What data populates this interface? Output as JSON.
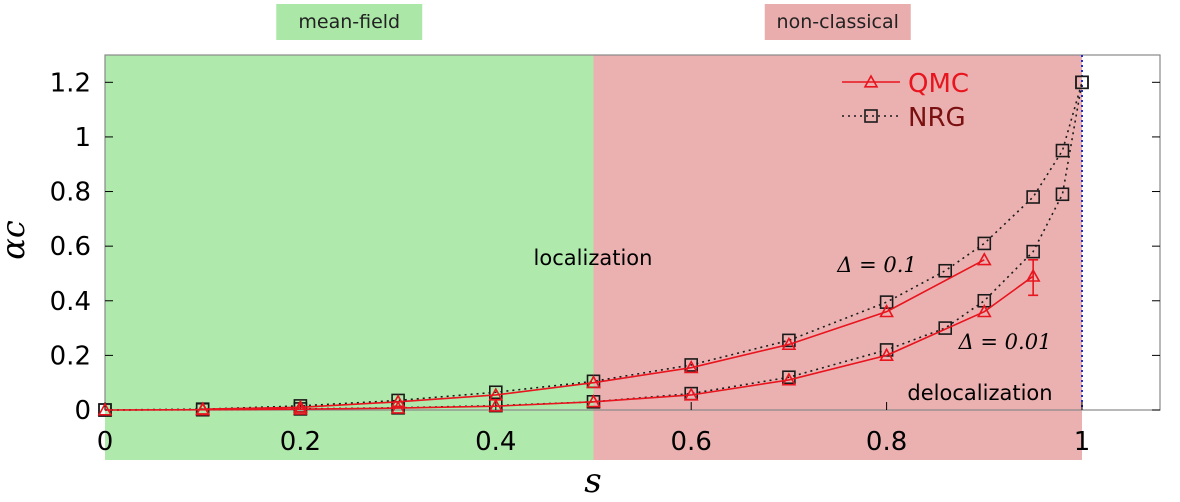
{
  "chart_data": {
    "type": "line",
    "xlabel": "s",
    "ylabel": "αc",
    "xlim": [
      0,
      1.1
    ],
    "ylim": [
      0,
      1.3
    ],
    "x_ticks": [
      "0",
      "0.2",
      "0.4",
      "0.6",
      "0.8",
      "1"
    ],
    "y_ticks": [
      "0",
      "0.2",
      "0.4",
      "0.6",
      "0.8",
      "1",
      "1.2"
    ],
    "grid": false,
    "legend_position": "top-right",
    "regions": [
      {
        "label": "mean-field",
        "x_range": [
          0,
          0.5
        ],
        "color": "#abe8a8"
      },
      {
        "label": "non-classical",
        "x_range": [
          0.5,
          1.0
        ],
        "color": "#eaadad"
      }
    ],
    "boundary_line_x": 1.0,
    "annotations": {
      "localization": "localization",
      "delocalization": "delocalization",
      "delta_high": "Δ = 0.1",
      "delta_low": "Δ = 0.01"
    },
    "series": [
      {
        "name": "QMC",
        "group": "Δ = 0.1",
        "style": "solid-triangle",
        "color": "#e8141e",
        "x": [
          0.1,
          0.2,
          0.3,
          0.4,
          0.5,
          0.6,
          0.7,
          0.8,
          0.9
        ],
        "y": [
          0.003,
          0.01,
          0.03,
          0.055,
          0.1,
          0.155,
          0.24,
          0.36,
          0.55
        ]
      },
      {
        "name": "QMC",
        "group": "Δ = 0.01",
        "style": "solid-triangle",
        "color": "#e8141e",
        "x": [
          0.0,
          0.1,
          0.2,
          0.3,
          0.4,
          0.5,
          0.6,
          0.7,
          0.8,
          0.9,
          0.95
        ],
        "y": [
          0.0,
          0.001,
          0.003,
          0.007,
          0.014,
          0.03,
          0.055,
          0.11,
          0.2,
          0.36,
          0.49
        ],
        "error_bar": {
          "x": 0.95,
          "low": 0.42,
          "high": 0.55
        }
      },
      {
        "name": "NRG",
        "group": "Δ = 0.1",
        "style": "dotted-square",
        "color": "#1a1a1a",
        "x": [
          0.0,
          0.1,
          0.2,
          0.3,
          0.4,
          0.5,
          0.6,
          0.7,
          0.8,
          0.86,
          0.9,
          0.95,
          0.98,
          1.0
        ],
        "y": [
          0.0,
          0.003,
          0.015,
          0.035,
          0.065,
          0.105,
          0.165,
          0.255,
          0.395,
          0.51,
          0.61,
          0.78,
          0.95,
          1.2
        ]
      },
      {
        "name": "NRG",
        "group": "Δ = 0.01",
        "style": "dotted-square",
        "color": "#1a1a1a",
        "x": [
          0.0,
          0.1,
          0.2,
          0.3,
          0.4,
          0.5,
          0.6,
          0.7,
          0.8,
          0.86,
          0.9,
          0.95,
          0.98,
          1.0
        ],
        "y": [
          0.0,
          0.001,
          0.004,
          0.008,
          0.016,
          0.03,
          0.06,
          0.12,
          0.22,
          0.3,
          0.4,
          0.58,
          0.79,
          1.2
        ]
      }
    ],
    "legend": [
      {
        "label": "QMC",
        "style": "solid-triangle",
        "color": "#e8141e"
      },
      {
        "label": "NRG",
        "style": "dotted-square",
        "color": "#1a1a1a"
      }
    ]
  }
}
